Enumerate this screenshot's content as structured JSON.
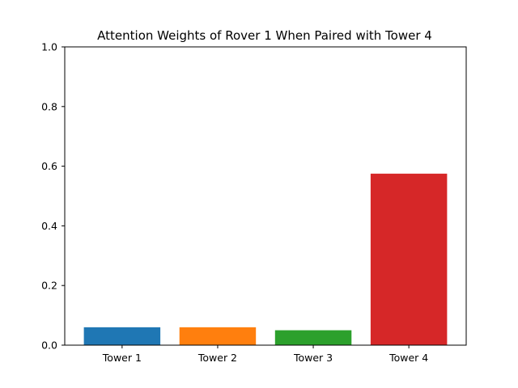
{
  "chart_data": {
    "type": "bar",
    "title": "Attention Weights of Rover 1 When Paired with Tower 4",
    "xlabel": "",
    "ylabel": "",
    "categories": [
      "Tower 1",
      "Tower 2",
      "Tower 3",
      "Tower 4"
    ],
    "values": [
      0.06,
      0.06,
      0.05,
      0.575
    ],
    "colors": [
      "#1f77b4",
      "#ff7f0e",
      "#2ca02c",
      "#d62728"
    ],
    "ylim": [
      0,
      1.0
    ],
    "yticks": [
      "0.0",
      "0.2",
      "0.4",
      "0.6",
      "0.8",
      "1.0"
    ],
    "grid": false
  }
}
